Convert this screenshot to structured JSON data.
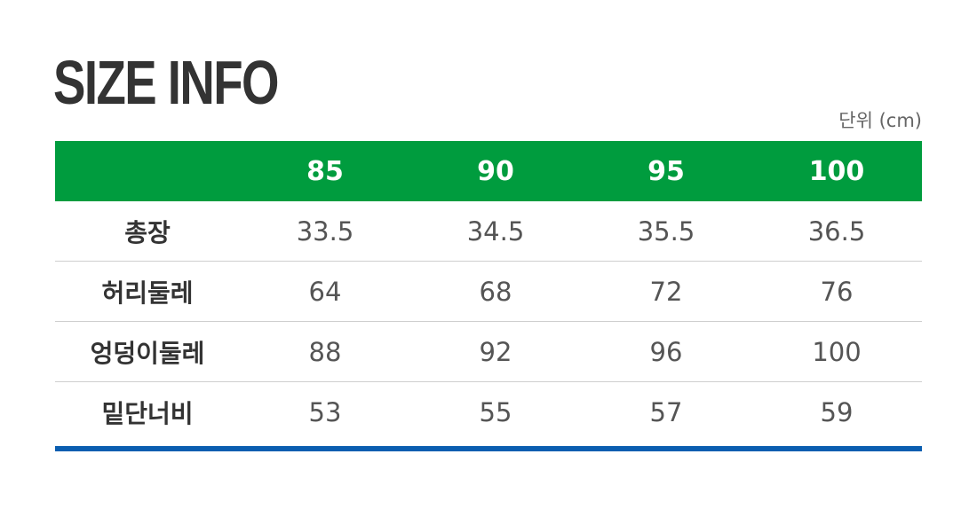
{
  "title": "SIZE INFO",
  "unit": "단위 (cm)",
  "colors": {
    "header_bg": "#009c3e",
    "accent_line": "#0a5eb0",
    "text": "#333333"
  },
  "table": {
    "columns": [
      "",
      "85",
      "90",
      "95",
      "100"
    ],
    "rows": [
      {
        "label": "총장",
        "values": [
          "33.5",
          "34.5",
          "35.5",
          "36.5"
        ]
      },
      {
        "label": "허리둘레",
        "values": [
          "64",
          "68",
          "72",
          "76"
        ]
      },
      {
        "label": "엉덩이둘레",
        "values": [
          "88",
          "92",
          "96",
          "100"
        ]
      },
      {
        "label": "밑단너비",
        "values": [
          "53",
          "55",
          "57",
          "59"
        ]
      }
    ]
  }
}
